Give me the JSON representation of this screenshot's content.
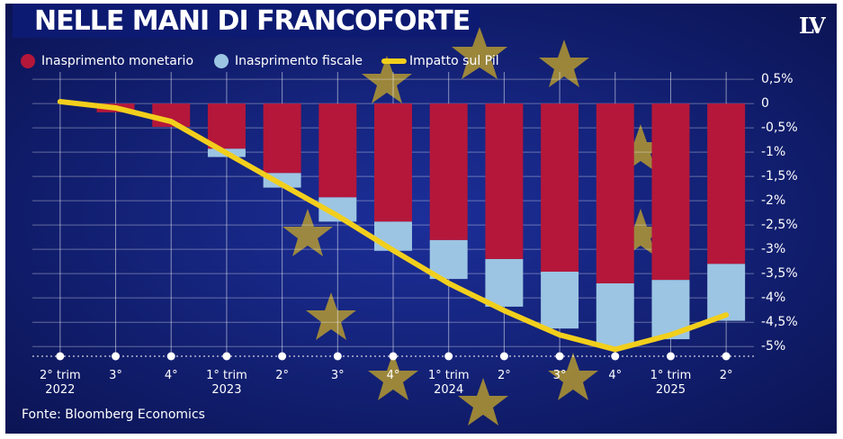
{
  "title": "NELLE MANI DI FRANCOFORTE",
  "logo": "LV",
  "source": "Fonte: Bloomberg Economics",
  "chart_data": {
    "type": "bar",
    "stacked": true,
    "categories": [
      "2° trim\n2022",
      "3°",
      "4°",
      "1° trim\n2023",
      "2°",
      "3°",
      "4°",
      "1° trim\n2024",
      "2°",
      "3°",
      "4°",
      "1° trim\n2025",
      "2°"
    ],
    "series": [
      {
        "name": "Inasprimento monetario",
        "color": "#b5173a",
        "values": [
          0,
          -0.18,
          -0.48,
          -0.93,
          -1.43,
          -1.93,
          -2.43,
          -2.81,
          -3.2,
          -3.46,
          -3.7,
          -3.63,
          -3.3
        ]
      },
      {
        "name": "Inasprimento fiscale",
        "color": "#9cc5e3",
        "values": [
          0,
          0,
          0,
          -0.17,
          -0.3,
          -0.5,
          -0.6,
          -0.8,
          -0.98,
          -1.17,
          -1.31,
          -1.22,
          -1.17
        ]
      },
      {
        "name": "Impatto sul Pil",
        "color": "#f2cf1c",
        "type": "line",
        "values": [
          0.04,
          -0.09,
          -0.37,
          -1.02,
          -1.67,
          -2.31,
          -3.02,
          -3.7,
          -4.26,
          -4.76,
          -5.06,
          -4.76,
          -4.35
        ]
      }
    ],
    "ylim": [
      0.65,
      -5.2
    ],
    "yticks": [
      {
        "value": 0.5,
        "label": "0,5%"
      },
      0,
      {
        "value": -0.5,
        "label": "-0,5%"
      },
      {
        "value": -1,
        "label": "-1%"
      },
      {
        "value": -1.5,
        "label": "-1,5%"
      },
      {
        "value": -2,
        "label": "-2%"
      },
      {
        "value": -2.5,
        "label": "-2,5%"
      },
      {
        "value": -3,
        "label": "-3%"
      },
      {
        "value": -3.5,
        "label": "-3,5%"
      },
      {
        "value": -4,
        "label": "-4%"
      },
      {
        "value": -4.5,
        "label": "-4,5%"
      },
      {
        "value": -5,
        "label": "-5%"
      }
    ],
    "grid": true,
    "legend": "top"
  }
}
